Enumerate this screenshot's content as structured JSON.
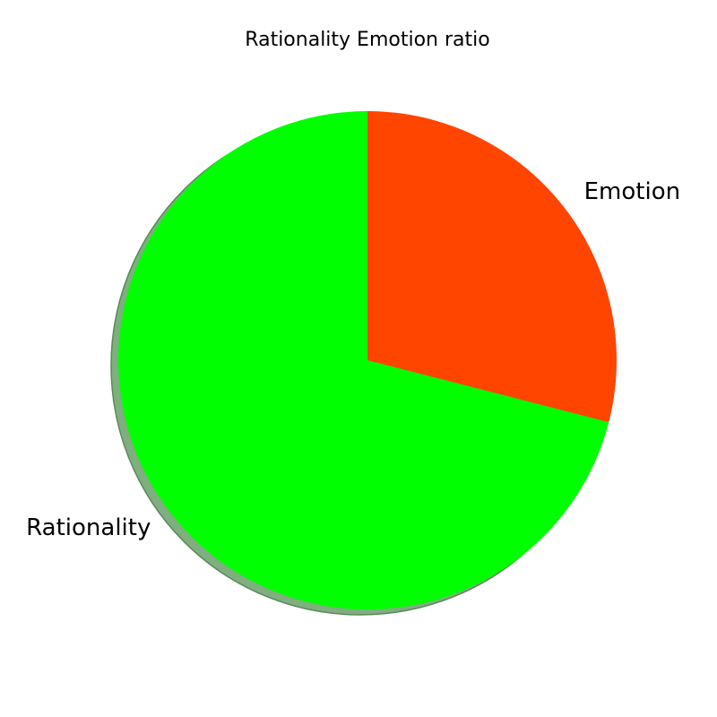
{
  "chart_data": {
    "type": "pie",
    "title": "Rationality Emotion ratio",
    "slices": [
      {
        "label": "Emotion",
        "value": 29,
        "color": "#ff4500"
      },
      {
        "label": "Rationality",
        "value": 71,
        "color": "#00ff00"
      }
    ],
    "start_angle_deg": 90,
    "direction": "clockwise",
    "shadow": true,
    "shadow_color": "#7fae7f"
  }
}
